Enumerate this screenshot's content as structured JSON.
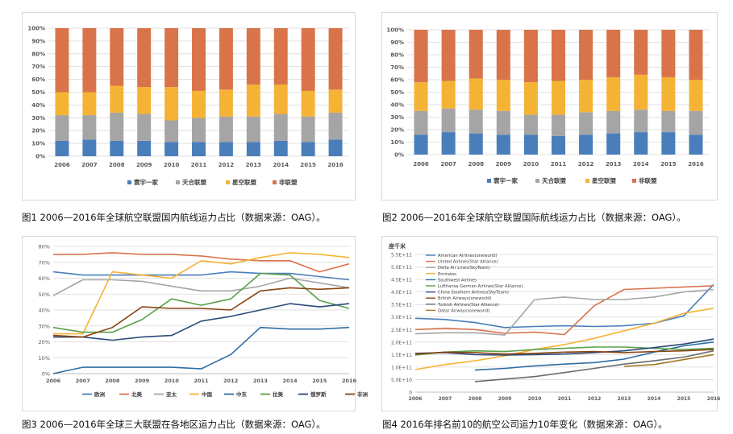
{
  "captions": {
    "fig1": "图1 2006—2016年全球航空联盟国内航线运力占比（数据来源：OAG）。",
    "fig2": "图2 2006—2016年全球航空联盟国际航线运力占比（数据来源：OAG）。",
    "fig3": "图3 2006—2016年全球三大联盟在各地区运力占比（数据来源：OAG）。",
    "fig4": "图4 2016年排名前10的航空公司运力10年变化（数据来源：OAG）。"
  },
  "chart_data": [
    {
      "id": "fig1",
      "type": "bar",
      "stacked": true,
      "title": "",
      "categories": [
        "2006",
        "2007",
        "2008",
        "2009",
        "2010",
        "2011",
        "2012",
        "2013",
        "2014",
        "2015",
        "2016"
      ],
      "ylim": [
        0,
        100
      ],
      "yticks": [
        "0%",
        "10%",
        "20%",
        "30%",
        "40%",
        "50%",
        "60%",
        "70%",
        "80%",
        "90%",
        "100%"
      ],
      "legend_position": "bottom",
      "series": [
        {
          "name": "寰宇一家",
          "color": "#4a7ebb",
          "values": [
            12,
            13,
            12,
            12,
            11,
            11,
            11,
            11,
            12,
            11,
            13
          ]
        },
        {
          "name": "天合联盟",
          "color": "#a5a5a5",
          "values": [
            20,
            19,
            22,
            21,
            17,
            19,
            20,
            20,
            21,
            20,
            21
          ]
        },
        {
          "name": "星空联盟",
          "color": "#f5b335",
          "values": [
            18,
            18,
            21,
            21,
            26,
            21,
            21,
            25,
            23,
            20,
            18
          ]
        },
        {
          "name": "非联盟",
          "color": "#d9734a",
          "values": [
            50,
            50,
            45,
            46,
            46,
            49,
            48,
            44,
            44,
            49,
            48
          ]
        }
      ]
    },
    {
      "id": "fig2",
      "type": "bar",
      "stacked": true,
      "title": "",
      "categories": [
        "2006",
        "2007",
        "2008",
        "2009",
        "2010",
        "2011",
        "2012",
        "2013",
        "2014",
        "2015",
        "2016"
      ],
      "ylim": [
        0,
        100
      ],
      "yticks": [
        "0%",
        "10%",
        "20%",
        "30%",
        "40%",
        "50%",
        "60%",
        "70%",
        "80%",
        "90%",
        "100%"
      ],
      "legend_position": "bottom",
      "series": [
        {
          "name": "寰宇一家",
          "color": "#4a7ebb",
          "values": [
            16,
            18,
            17,
            16,
            16,
            15,
            16,
            17,
            18,
            18,
            16
          ]
        },
        {
          "name": "天合联盟",
          "color": "#a5a5a5",
          "values": [
            19,
            19,
            19,
            19,
            16,
            17,
            18,
            18,
            18,
            17,
            19
          ]
        },
        {
          "name": "星空联盟",
          "color": "#f5b335",
          "values": [
            23,
            22,
            25,
            25,
            26,
            27,
            26,
            27,
            28,
            27,
            25
          ]
        },
        {
          "name": "非联盟",
          "color": "#d9734a",
          "values": [
            42,
            41,
            39,
            40,
            42,
            41,
            40,
            38,
            36,
            38,
            40
          ]
        }
      ]
    },
    {
      "id": "fig3",
      "type": "line",
      "title": "",
      "x": [
        "2006",
        "2007",
        "2008",
        "2009",
        "2010",
        "2011",
        "2012",
        "2013",
        "2014",
        "2015",
        "2016"
      ],
      "ylim": [
        0,
        80
      ],
      "yticks": [
        "0%",
        "10%",
        "20%",
        "30%",
        "40%",
        "50%",
        "60%",
        "70%",
        "80%"
      ],
      "legend_position": "bottom",
      "series": [
        {
          "name": "欧洲",
          "color": "#4a7ebb",
          "values": [
            64,
            62,
            62,
            62,
            62,
            62,
            64,
            63,
            63,
            61,
            59
          ]
        },
        {
          "name": "北美",
          "color": "#d9734a",
          "values": [
            75,
            75,
            76,
            75,
            75,
            74,
            72,
            71,
            71,
            64,
            69
          ]
        },
        {
          "name": "亚太",
          "color": "#a5a5a5",
          "values": [
            49,
            59,
            59,
            58,
            55,
            52,
            52,
            55,
            60,
            57,
            54
          ]
        },
        {
          "name": "中国",
          "color": "#f5b335",
          "values": [
            25,
            25,
            64,
            62,
            60,
            71,
            69,
            73,
            76,
            75,
            73
          ]
        },
        {
          "name": "中东",
          "color": "#2e6da4",
          "values": [
            0,
            4,
            4,
            4,
            4,
            3,
            12,
            29,
            28,
            28,
            29
          ]
        },
        {
          "name": "拉美",
          "color": "#5aa04a",
          "values": [
            29,
            26,
            26,
            34,
            47,
            43,
            47,
            63,
            62,
            46,
            41
          ]
        },
        {
          "name": "俄罗斯",
          "color": "#2b4a7a",
          "values": [
            23,
            23,
            21,
            23,
            24,
            33,
            36,
            40,
            44,
            42,
            44
          ]
        },
        {
          "name": "非洲",
          "color": "#8b4513",
          "values": [
            24,
            23,
            29,
            42,
            41,
            41,
            40,
            52,
            54,
            53,
            54
          ]
        }
      ]
    },
    {
      "id": "fig4",
      "type": "line",
      "title": "",
      "ylabel": "座千米",
      "x": [
        "2006",
        "2007",
        "2008",
        "2009",
        "2010",
        "2011",
        "2012",
        "2013",
        "2014",
        "2015",
        "2016"
      ],
      "ylim": [
        0,
        550
      ],
      "yticks": [
        "0",
        "5.0E+10",
        "1.0E+11",
        "1.5E+11",
        "2.0E+11",
        "2.5E+11",
        "3.0E+11",
        "3.5E+11",
        "4.0E+11",
        "4.5E+11",
        "5.0E+11",
        "5.5E+11"
      ],
      "legend_position": "top-left",
      "series": [
        {
          "name": "American Airlines(oneworld)",
          "color": "#4a7ebb",
          "values": [
            295,
            290,
            278,
            258,
            262,
            265,
            262,
            265,
            275,
            305,
            430
          ]
        },
        {
          "name": "United Airlines(Star Alliance)",
          "color": "#d9734a",
          "values": [
            250,
            255,
            250,
            235,
            240,
            230,
            345,
            410,
            415,
            420,
            425
          ]
        },
        {
          "name": "Delta Air Lines(SkyTeam)",
          "color": "#a5a5a5",
          "values": [
            233,
            237,
            237,
            228,
            370,
            380,
            370,
            370,
            380,
            400,
            410
          ]
        },
        {
          "name": "Emirates",
          "color": "#f5b335",
          "values": [
            90,
            110,
            125,
            145,
            170,
            190,
            215,
            245,
            275,
            315,
            335
          ]
        },
        {
          "name": "Southwest Airlines",
          "color": "#2e6da4",
          "values": [
            null,
            null,
            88,
            95,
            105,
            112,
            118,
            132,
            160,
            185,
            200
          ]
        },
        {
          "name": "Lufthansa German Airlines(Star Alliance)",
          "color": "#5aa04a",
          "values": [
            148,
            160,
            165,
            162,
            170,
            175,
            180,
            180,
            175,
            170,
            175
          ]
        },
        {
          "name": "China Southern Airlines(SkyTeam)",
          "color": "#2b4a7a",
          "values": [
            155,
            158,
            150,
            148,
            150,
            152,
            158,
            165,
            178,
            192,
            212
          ]
        },
        {
          "name": "British Airways(oneworld)",
          "color": "#8b4513",
          "values": [
            152,
            160,
            158,
            152,
            155,
            160,
            162,
            158,
            162,
            165,
            170
          ]
        },
        {
          "name": "Turkish Airlines(Star Alliance)",
          "color": "#6b6b6b",
          "values": [
            null,
            null,
            42,
            52,
            62,
            78,
            95,
            112,
            125,
            140,
            165
          ]
        },
        {
          "name": "Qatar Airways(oneworld)",
          "color": "#a07820",
          "values": [
            null,
            null,
            null,
            null,
            null,
            null,
            null,
            103,
            110,
            130,
            150
          ]
        }
      ]
    }
  ]
}
